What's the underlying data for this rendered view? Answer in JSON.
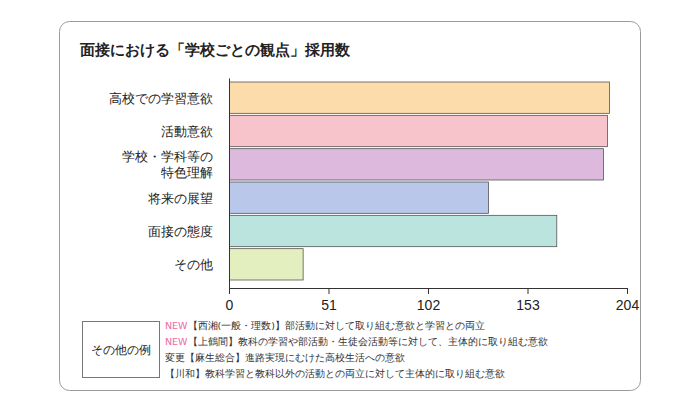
{
  "chart_data": {
    "type": "bar",
    "orientation": "horizontal",
    "title": "面接における「学校ごとの観点」採用数",
    "categories": [
      "高校での学習意欲",
      "活動意欲",
      "学校・学科等の\n特色理解",
      "将来の展望",
      "面接の態度",
      "その他"
    ],
    "values": [
      195,
      194,
      192,
      133,
      168,
      38
    ],
    "colors": [
      "#fddcab",
      "#f8c4cc",
      "#ddb9dd",
      "#b8c7ea",
      "#bbe4de",
      "#e4efc0"
    ],
    "xlim": [
      0,
      204
    ],
    "xticks": [
      0,
      51,
      102,
      153,
      204
    ],
    "grid": false,
    "annotations": {
      "label": "その他の例",
      "items": [
        {
          "tag": "NEW",
          "color": "#ea6aa3",
          "text": "【西湘(一般・理数)】部活動に対して取り組む意欲と学習との両立"
        },
        {
          "tag": "NEW",
          "color": "#ea6aa3",
          "text": "【上鶴間】教科の学習や部活動・生徒会活動等に対して、主体的に取り組む意欲"
        },
        {
          "tag": "変更",
          "color": "#333333",
          "text": "【麻生総合】進路実現にむけた高校生活への意欲"
        },
        {
          "text": "【川和】教科学習と教科以外の活動との両立に対して主体的に取り組む意欲"
        }
      ]
    }
  }
}
